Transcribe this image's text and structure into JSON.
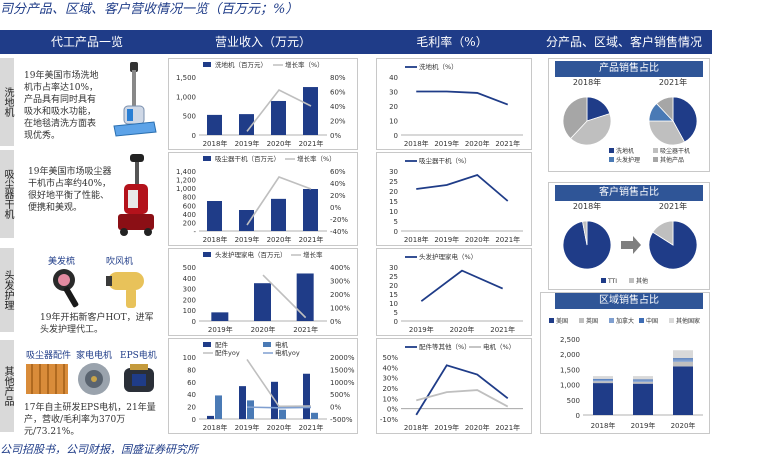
{
  "title": "司分产品、区域、客户营收情况一览（百万元；%）",
  "source": "公司招股书，公司财报，国盛证券研究所",
  "headers": [
    "代工产品一览",
    "营业收入（万元）",
    "毛利率（%）",
    "分产品、区域、客户销售情况"
  ],
  "row_labels": [
    "洗地机",
    "吸尘器干机",
    "头发护理",
    "其他产品"
  ],
  "descriptions": {
    "washer": "19年美国市场洗地机市占率达10%，产品具有同时具有吸水和吸水功能，在地毯清洗方面表现优秀。",
    "vacuum": "19年美国市场吸尘器干机市占率约40%，很好地平衡了性能、便携和美观。",
    "hair": "19年开拓新客户HOT，进军头发护理代工。",
    "other": "17年自主研发EPS电机，21年量产，营收/毛利率为370万元/73.21%。"
  },
  "product_labels": {
    "hair_a": "美发梳",
    "hair_b": "吹风机",
    "other_a": "吸尘器配件",
    "other_b": "家电电机",
    "other_c": "EPS电机"
  },
  "side_titles": [
    "产品销售占比",
    "客户销售占比",
    "区域销售占比"
  ],
  "chart_data": [
    {
      "type": "bar",
      "id": "rev-washer",
      "categories": [
        "2018年",
        "2019年",
        "2020年",
        "2021年"
      ],
      "series": [
        {
          "name": "洗地机（百万元）",
          "values": [
            520,
            540,
            880,
            1240
          ],
          "axis": "left"
        },
        {
          "name": "增长率（%）",
          "type": "line",
          "values": [
            null,
            5,
            62,
            40
          ],
          "axis": "right"
        }
      ],
      "ylim": [
        0,
        1500
      ],
      "yticks": [
        "0",
        "500",
        "1,000",
        "1,500"
      ],
      "y2lim": [
        0,
        80
      ],
      "y2ticks": [
        "0%",
        "20%",
        "40%",
        "60%",
        "80%"
      ]
    },
    {
      "type": "bar",
      "id": "rev-vacuum",
      "categories": [
        "2018年",
        "2019年",
        "2020年",
        "2021年"
      ],
      "series": [
        {
          "name": "吸尘器干机（百万元）",
          "values": [
            700,
            490,
            750,
            980
          ],
          "axis": "left"
        },
        {
          "name": "增长率（%）",
          "type": "line",
          "values": [
            null,
            -30,
            50,
            30
          ],
          "axis": "right"
        }
      ],
      "ylim": [
        0,
        1400
      ],
      "yticks": [
        "-",
        "200",
        "400",
        "600",
        "800",
        "1,000",
        "1,200",
        "1,400"
      ],
      "y2lim": [
        -40,
        60
      ],
      "y2ticks": [
        "-40%",
        "-20%",
        "0%",
        "20%",
        "40%",
        "60%"
      ]
    },
    {
      "type": "bar",
      "id": "rev-hair",
      "categories": [
        "2019年",
        "2020年",
        "2021年"
      ],
      "series": [
        {
          "name": "头发护理家电（百万元）",
          "values": [
            80,
            350,
            440
          ],
          "axis": "left"
        },
        {
          "name": "增长率",
          "type": "line",
          "values": [
            null,
            340,
            25
          ],
          "axis": "right"
        }
      ],
      "ylim": [
        0,
        500
      ],
      "yticks": [
        "0",
        "100",
        "200",
        "300",
        "400",
        "500"
      ],
      "y2lim": [
        0,
        400
      ],
      "y2ticks": [
        "0%",
        "100%",
        "200%",
        "300%",
        "400%"
      ]
    },
    {
      "type": "bar",
      "id": "rev-other",
      "categories": [
        "2018年",
        "2019年",
        "2020年",
        "2021年"
      ],
      "series": [
        {
          "name": "配件",
          "values": [
            5,
            53,
            60,
            73
          ],
          "axis": "left"
        },
        {
          "name": "电机",
          "values": [
            38,
            30,
            15,
            10
          ],
          "axis": "left"
        },
        {
          "name": "配件yoy",
          "type": "line",
          "values": [
            null,
            1900,
            10,
            20
          ],
          "axis": "right"
        },
        {
          "name": "电机yoy",
          "type": "line",
          "values": [
            null,
            -20,
            -50,
            -35
          ],
          "axis": "right"
        }
      ],
      "ylim": [
        0,
        100
      ],
      "yticks": [
        "0",
        "20",
        "40",
        "60",
        "80",
        "100"
      ],
      "y2lim": [
        -500,
        2000
      ],
      "y2ticks": [
        "-500%",
        "0%",
        "500%",
        "1000%",
        "1500%",
        "2000%"
      ]
    },
    {
      "type": "line",
      "id": "gm-washer",
      "categories": [
        "2018年",
        "2019年",
        "2020年",
        "2021年"
      ],
      "series": [
        {
          "name": "洗地机（%）",
          "values": [
            30,
            30,
            29,
            21
          ]
        }
      ],
      "ylim": [
        0,
        40
      ],
      "yticks": [
        "0",
        "10",
        "20",
        "30",
        "40"
      ]
    },
    {
      "type": "line",
      "id": "gm-vacuum",
      "categories": [
        "2018年",
        "2019年",
        "2020年",
        "2021年"
      ],
      "series": [
        {
          "name": "吸尘器干机（%）",
          "values": [
            21,
            23,
            28,
            15
          ]
        }
      ],
      "ylim": [
        0,
        30
      ],
      "yticks": [
        "0",
        "5",
        "10",
        "15",
        "20",
        "25",
        "30"
      ]
    },
    {
      "type": "line",
      "id": "gm-hair",
      "categories": [
        "2019年",
        "2020年",
        "2021年"
      ],
      "series": [
        {
          "name": "头发护理家电（%）",
          "values": [
            11,
            28,
            18
          ]
        }
      ],
      "ylim": [
        0,
        30
      ],
      "yticks": [
        "0",
        "5",
        "10",
        "15",
        "20",
        "25",
        "30"
      ]
    },
    {
      "type": "line",
      "id": "gm-other",
      "categories": [
        "2018年",
        "2019年",
        "2020年",
        "2021年"
      ],
      "series": [
        {
          "name": "配件等其他（%）",
          "values": [
            -6,
            42,
            33,
            10
          ]
        },
        {
          "name": "电机（%）",
          "values": [
            8,
            16,
            18,
            2
          ]
        }
      ],
      "ylim": [
        -10,
        50
      ],
      "yticks": [
        "-10%",
        "0%",
        "10%",
        "20%",
        "30%",
        "40%",
        "50%"
      ]
    },
    {
      "type": "pie",
      "id": "pie-product",
      "title": "产品销售占比",
      "charts": [
        {
          "label": "2018年",
          "values": [
            20,
            42,
            0,
            38
          ]
        },
        {
          "label": "2021年",
          "values": [
            42,
            33,
            13,
            12
          ]
        }
      ],
      "legend": [
        "洗地机",
        "吸尘器干机",
        "头发护理",
        "其他产品"
      ],
      "colors": [
        "#1f3c88",
        "#bfbfbf",
        "#4a7ab5",
        "#a6a6a6"
      ]
    },
    {
      "type": "pie",
      "id": "pie-customer",
      "title": "客户销售占比",
      "charts": [
        {
          "label": "2018年",
          "values": [
            97,
            3
          ]
        },
        {
          "label": "2021年",
          "values": [
            84,
            16
          ]
        }
      ],
      "legend": [
        "TTI",
        "其他"
      ],
      "colors": [
        "#1f3c88",
        "#bfbfbf"
      ]
    },
    {
      "type": "bar",
      "stacked": true,
      "id": "region",
      "title": "区域销售占比",
      "categories": [
        "2018年",
        "2019年",
        "2020年"
      ],
      "series": [
        {
          "name": "美国",
          "values": [
            1050,
            1030,
            1600
          ]
        },
        {
          "name": "英国",
          "values": [
            60,
            60,
            150
          ]
        },
        {
          "name": "加拿大",
          "values": [
            50,
            50,
            80
          ]
        },
        {
          "name": "中国",
          "values": [
            30,
            30,
            40
          ]
        },
        {
          "name": "其他国家",
          "values": [
            90,
            110,
            260
          ]
        }
      ],
      "colors": [
        "#1f3c88",
        "#bfbfbf",
        "#7f9fd0",
        "#3e6db5",
        "#d9d9d9"
      ],
      "ylim": [
        0,
        2500
      ],
      "yticks": [
        "0",
        "500",
        "1,000",
        "1,500",
        "2,000",
        "2,500"
      ]
    }
  ]
}
